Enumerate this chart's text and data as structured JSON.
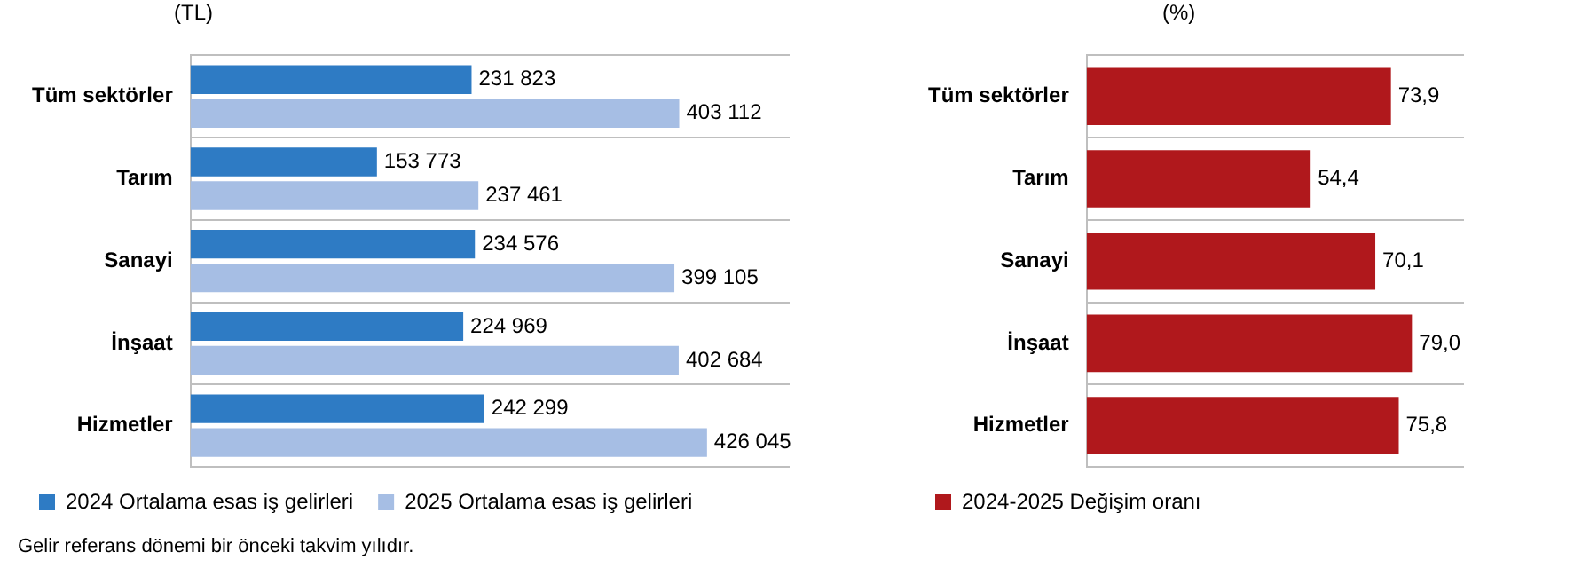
{
  "chart_data": [
    {
      "type": "bar",
      "orientation": "horizontal",
      "xlabel": "(TL)",
      "categories": [
        "Tüm sektörler",
        "Tarım",
        "Sanayi",
        "İnşaat",
        "Hizmetler"
      ],
      "series": [
        {
          "name": "2024 Ortalama esas iş gelirleri",
          "color": "#2e7bc4",
          "values": [
            231823,
            153773,
            234576,
            224969,
            242299
          ],
          "value_labels": [
            "231 823",
            "153 773",
            "234 576",
            "224 969",
            "242 299"
          ]
        },
        {
          "name": "2025 Ortalama esas iş gelirleri",
          "color": "#a6bee4",
          "values": [
            403112,
            237461,
            399105,
            402684,
            426045
          ],
          "value_labels": [
            "403 112",
            "237 461",
            "399 105",
            "402 684",
            "426 045"
          ]
        }
      ],
      "grid": "y",
      "legend": "bottom",
      "annotations": [
        "Gelir referans dönemi bir önceki takvim yılıdır."
      ]
    },
    {
      "type": "bar",
      "orientation": "horizontal",
      "xlabel": "(%)",
      "categories": [
        "Tüm sektörler",
        "Tarım",
        "Sanayi",
        "İnşaat",
        "Hizmetler"
      ],
      "series": [
        {
          "name": "2024-2025 Değişim oranı",
          "color": "#b0181c",
          "values": [
            73.9,
            54.4,
            70.1,
            79.0,
            75.8
          ],
          "value_labels": [
            "73,9",
            "54,4",
            "70,1",
            "79,0",
            "75,8"
          ]
        }
      ],
      "grid": "y",
      "legend": "bottom"
    }
  ]
}
